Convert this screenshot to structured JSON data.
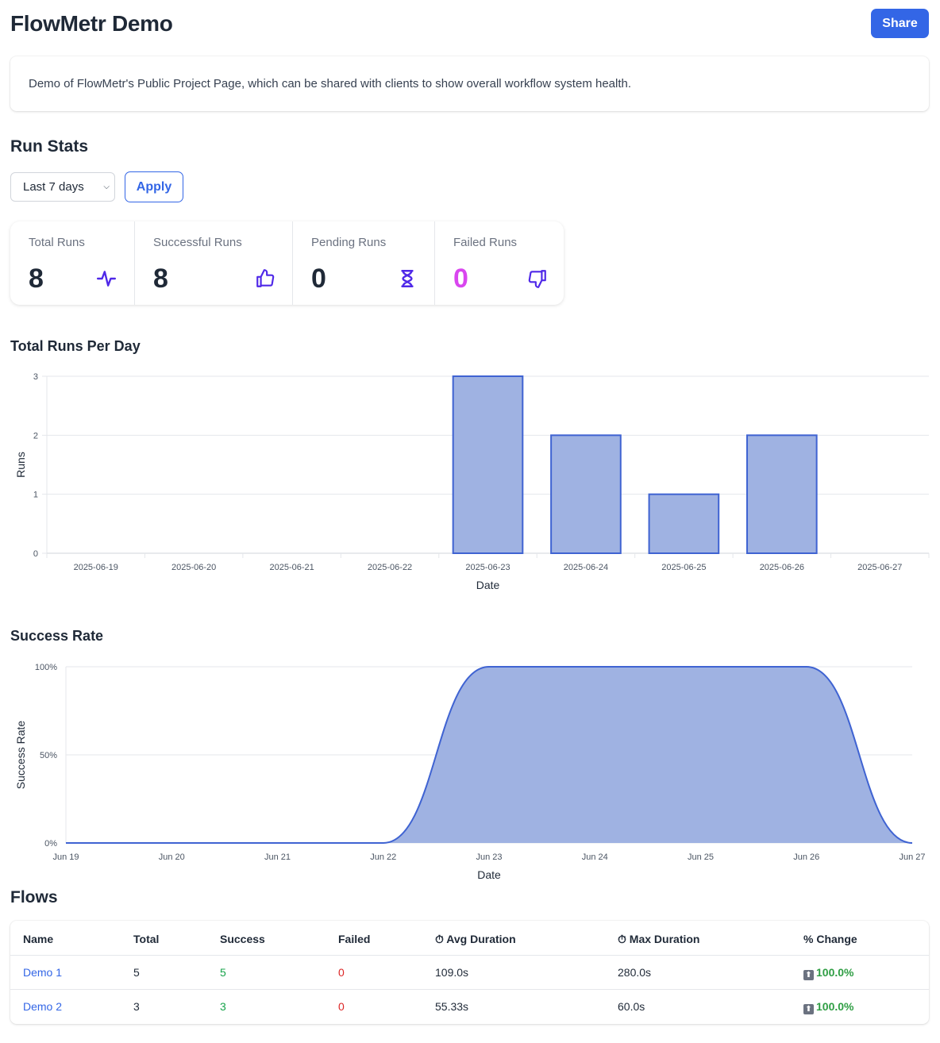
{
  "header": {
    "title": "FlowMetr Demo",
    "share_label": "Share"
  },
  "description": "Demo of FlowMetr's Public Project Page, which can be shared with clients to show overall workflow system health.",
  "run_stats": {
    "title": "Run Stats",
    "range_value": "Last 7 days",
    "apply_label": "Apply",
    "cards": [
      {
        "label": "Total Runs",
        "value": "8",
        "color": "#1f2937",
        "icon": "activity-icon"
      },
      {
        "label": "Successful Runs",
        "value": "8",
        "color": "#1f2937",
        "icon": "thumbs-up-icon"
      },
      {
        "label": "Pending Runs",
        "value": "0",
        "color": "#1f2937",
        "icon": "hourglass-icon"
      },
      {
        "label": "Failed Runs",
        "value": "0",
        "color": "#d946ef",
        "icon": "thumbs-down-icon"
      }
    ],
    "icon_color": "#4f28e8"
  },
  "chart_data": [
    {
      "type": "bar",
      "title": "Total Runs Per Day",
      "xlabel": "Date",
      "ylabel": "Runs",
      "categories": [
        "2025-06-19",
        "2025-06-20",
        "2025-06-21",
        "2025-06-22",
        "2025-06-23",
        "2025-06-24",
        "2025-06-25",
        "2025-06-26",
        "2025-06-27"
      ],
      "values": [
        0,
        0,
        0,
        0,
        3,
        2,
        1,
        2,
        0
      ],
      "ylim": [
        0,
        3
      ],
      "yticks": [
        "0",
        "1",
        "2",
        "3"
      ],
      "fill": "#9fb2e2",
      "stroke": "#3f63d2"
    },
    {
      "type": "area",
      "title": "Success Rate",
      "xlabel": "Date",
      "ylabel": "Success Rate",
      "categories": [
        "Jun 19",
        "Jun 20",
        "Jun 21",
        "Jun 22",
        "Jun 23",
        "Jun 24",
        "Jun 25",
        "Jun 26",
        "Jun 27"
      ],
      "values": [
        0,
        0,
        0,
        0,
        100,
        100,
        100,
        100,
        0
      ],
      "ylim": [
        0,
        100
      ],
      "yticks": [
        "0%",
        "50%",
        "100%"
      ],
      "fill": "#9fb2e2",
      "stroke": "#3f63d2"
    }
  ],
  "flows": {
    "title": "Flows",
    "columns": [
      "Name",
      "Total",
      "Success",
      "Failed",
      "⏱ Avg Duration",
      "⏱ Max Duration",
      "% Change"
    ],
    "rows": [
      {
        "name": "Demo 1",
        "total": "5",
        "success": "5",
        "failed": "0",
        "avg": "109.0s",
        "max": "280.0s",
        "change": "100.0%"
      },
      {
        "name": "Demo 2",
        "total": "3",
        "success": "3",
        "failed": "0",
        "avg": "55.33s",
        "max": "60.0s",
        "change": "100.0%"
      }
    ]
  }
}
